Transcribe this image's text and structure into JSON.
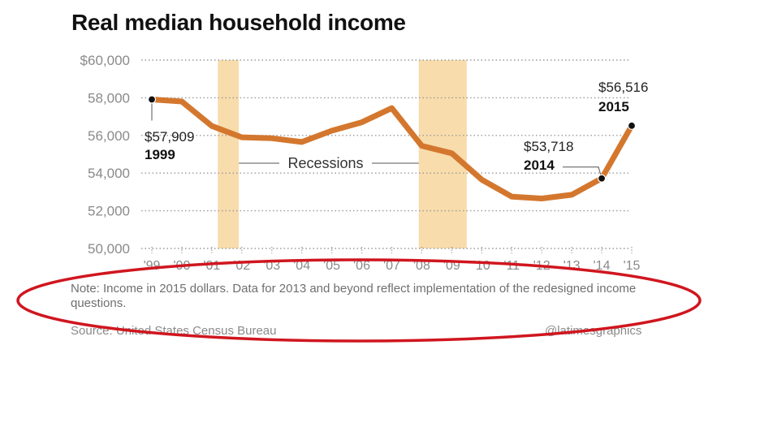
{
  "chart_data": {
    "type": "line",
    "title": "Real median household income",
    "x": [
      "'99",
      "'00",
      "'01",
      "'02",
      "'03",
      "'04",
      "'05",
      "'06",
      "'07",
      "'08",
      "'09",
      "'10",
      "'11",
      "'12",
      "'13",
      "'14",
      "'15"
    ],
    "years": [
      1999,
      2000,
      2001,
      2002,
      2003,
      2004,
      2005,
      2006,
      2007,
      2008,
      2009,
      2010,
      2011,
      2012,
      2013,
      2014,
      2015
    ],
    "series": [
      {
        "values": [
          57909,
          57800,
          56500,
          55900,
          55850,
          55650,
          56250,
          56700,
          57450,
          55450,
          55050,
          53650,
          52750,
          52650,
          52850,
          53718,
          56516
        ]
      }
    ],
    "y_ticks": [
      "$60,000",
      "58,000",
      "56,000",
      "54,000",
      "52,000",
      "50,000"
    ],
    "y_tick_values": [
      60000,
      58000,
      56000,
      54000,
      52000,
      50000
    ],
    "ylim": [
      50000,
      60000
    ],
    "recessions": [
      {
        "start": 2001.2,
        "end": 2001.9
      },
      {
        "start": 2007.9,
        "end": 2009.5
      }
    ],
    "recession_label": "Recessions",
    "annotations": [
      {
        "year": 1999,
        "value_label": "$57,909",
        "year_label": "1999"
      },
      {
        "year": 2014,
        "value_label": "$53,718",
        "year_label": "2014"
      },
      {
        "year": 2015,
        "value_label": "$56,516",
        "year_label": "2015"
      }
    ],
    "grid": true,
    "colors": {
      "line": "#d4772e",
      "recession": "#f8dcab",
      "grid": "#9a9a9a",
      "marker": "#111111"
    }
  },
  "note": "Note: Income in 2015 dollars. Data for 2013 and beyond reflect implementation of the redesigned income questions.",
  "source": "Source: United States Census Bureau",
  "credit": "@latimesgraphics",
  "highlight_ellipse_color": "#d0161f"
}
